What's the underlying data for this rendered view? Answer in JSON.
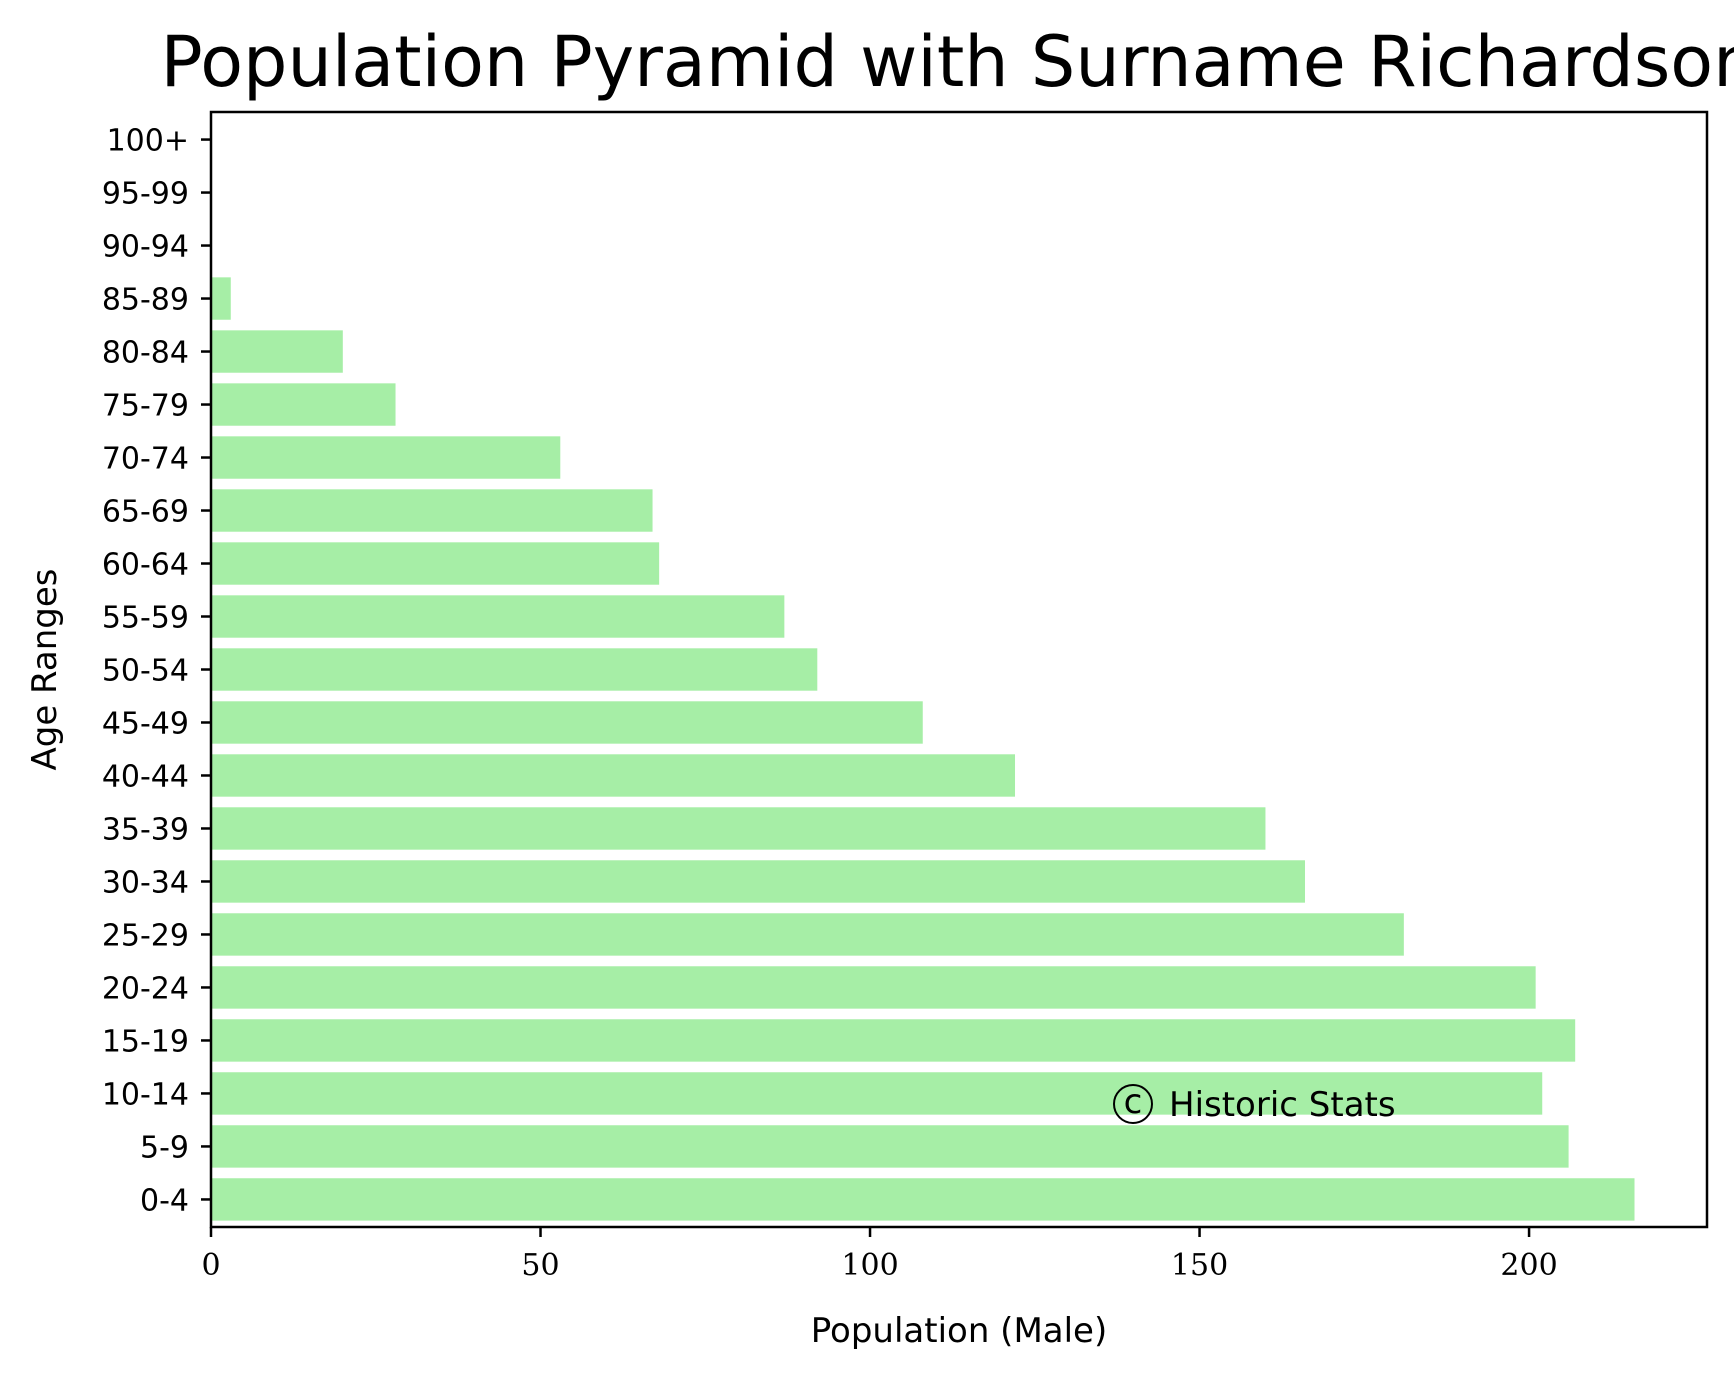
{
  "chart_data": {
    "type": "bar",
    "orientation": "horizontal",
    "title": "Population Pyramid with Surname Richardson",
    "xlabel": "Population (Male)",
    "ylabel": "Age Ranges",
    "categories": [
      "0-4",
      "5-9",
      "10-14",
      "15-19",
      "20-24",
      "25-29",
      "30-34",
      "35-39",
      "40-44",
      "45-49",
      "50-54",
      "55-59",
      "60-64",
      "65-69",
      "70-74",
      "75-79",
      "80-84",
      "85-89",
      "90-94",
      "95-99",
      "100+"
    ],
    "values": [
      216,
      206,
      202,
      207,
      201,
      181,
      166,
      160,
      122,
      108,
      92,
      87,
      68,
      67,
      53,
      28,
      20,
      3,
      0,
      0,
      0
    ],
    "xlim": [
      0,
      227
    ],
    "xticks": [
      0,
      50,
      100,
      150,
      200
    ],
    "bar_color": "#a6eea6",
    "grid": false,
    "legend": "none"
  },
  "watermark": {
    "symbol": "©",
    "text": "Historic Stats"
  }
}
